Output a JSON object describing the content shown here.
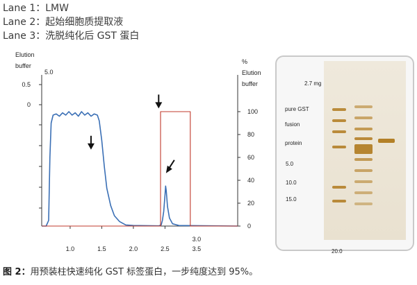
{
  "lanes": [
    "Lane 1：LMW",
    "Lane 2：起始细胞质提取液",
    "Lane 3：洗脱纯化后 GST 蛋白"
  ],
  "caption": {
    "prefix": "图 2：",
    "text": "用预装柱快速纯化 GST 标签蛋白，一步纯度达到 95%。"
  },
  "gel": {
    "amount": "2.7 mg",
    "labels": [
      "pure GST",
      "fusion",
      "protein"
    ],
    "marker_values": [
      "5.0",
      "10.0",
      "15.0",
      "20.0"
    ]
  },
  "chart_data": {
    "type": "line",
    "left_axis_title": [
      "Elution",
      "buffer"
    ],
    "left_axis_ticks": [
      "5.0",
      "0.5",
      "0"
    ],
    "right_axis_title": [
      "%",
      "Elution",
      "buffer"
    ],
    "right_ticks": [
      100,
      80,
      60,
      40,
      20,
      0
    ],
    "x_ticks": [
      "1.0",
      "1.5",
      "2.0",
      "2.5",
      "3.0"
    ],
    "x_extra_label": "3.5",
    "xlim": [
      0.55,
      3.65
    ],
    "ylim_right": [
      0,
      100
    ],
    "series": [
      {
        "type": "uv_absorbance",
        "color": "#3a6fb5",
        "points": [
          [
            0.55,
            0
          ],
          [
            0.62,
            0
          ],
          [
            0.66,
            5
          ],
          [
            0.68,
            60
          ],
          [
            0.7,
            90
          ],
          [
            0.73,
            97
          ],
          [
            0.78,
            98
          ],
          [
            0.83,
            96
          ],
          [
            0.88,
            99
          ],
          [
            0.93,
            97
          ],
          [
            0.98,
            100
          ],
          [
            1.03,
            97
          ],
          [
            1.08,
            99
          ],
          [
            1.13,
            96
          ],
          [
            1.18,
            100
          ],
          [
            1.23,
            97
          ],
          [
            1.28,
            99
          ],
          [
            1.33,
            96
          ],
          [
            1.38,
            98
          ],
          [
            1.43,
            97
          ],
          [
            1.46,
            92
          ],
          [
            1.5,
            75
          ],
          [
            1.54,
            52
          ],
          [
            1.58,
            33
          ],
          [
            1.64,
            18
          ],
          [
            1.7,
            9
          ],
          [
            1.78,
            4
          ],
          [
            1.88,
            1
          ],
          [
            2.0,
            0.5
          ],
          [
            2.4,
            0.2
          ],
          [
            2.44,
            1
          ],
          [
            2.46,
            5
          ],
          [
            2.48,
            13
          ],
          [
            2.5,
            27
          ],
          [
            2.51,
            35
          ],
          [
            2.52,
            31
          ],
          [
            2.54,
            17
          ],
          [
            2.57,
            7
          ],
          [
            2.62,
            2
          ],
          [
            2.72,
            0.5
          ],
          [
            3.65,
            0
          ]
        ]
      },
      {
        "type": "elution_buffer_percent",
        "color": "#c0392b",
        "points": [
          [
            0.55,
            0
          ],
          [
            2.43,
            0
          ],
          [
            2.43,
            100
          ],
          [
            2.9,
            100
          ],
          [
            2.9,
            0
          ],
          [
            3.65,
            0
          ]
        ]
      }
    ],
    "arrows": [
      {
        "x": 1.33,
        "y": 68
      },
      {
        "x": 2.4,
        "y": 104
      },
      {
        "x": 2.56,
        "y": 48
      }
    ]
  }
}
